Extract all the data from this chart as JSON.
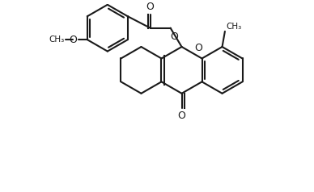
{
  "bg_color": "#ffffff",
  "line_color": "#1a1a1a",
  "lw": 1.5,
  "figsize": [
    3.88,
    2.38
  ],
  "dpi": 100,
  "r": 0.52,
  "xlim": [
    -2.6,
    3.6
  ],
  "ylim": [
    -2.2,
    2.0
  ]
}
